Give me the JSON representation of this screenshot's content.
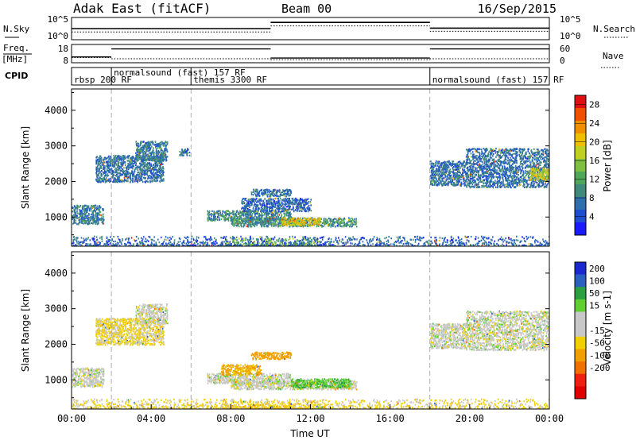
{
  "header": {
    "station": "Adak East (fitACF)",
    "beam": "Beam 00",
    "date": "16/Sep/2015"
  },
  "noise_panel": {
    "left_label": "N.Sky",
    "right_label": "N.Search",
    "y_ticks": [
      "10^5",
      "10^0"
    ],
    "sky_levels": [
      {
        "t0": 0.0,
        "t1": 10.0,
        "level": 0.5
      },
      {
        "t0": 10.0,
        "t1": 18.0,
        "level": 0.78
      },
      {
        "t0": 18.0,
        "t1": 24.0,
        "level": 0.52
      }
    ],
    "search_levels": [
      {
        "t0": 0.0,
        "t1": 10.0,
        "level": 0.35
      },
      {
        "t0": 10.0,
        "t1": 18.0,
        "level": 0.62
      },
      {
        "t0": 18.0,
        "t1": 24.0,
        "level": 0.38
      }
    ]
  },
  "freq_panel": {
    "left_label_1": "Freq.",
    "left_label_2": "[MHz]",
    "right_label": "Nave",
    "left_ticks": [
      "18",
      "8"
    ],
    "right_ticks": [
      "60",
      "0"
    ],
    "freq_mhz": [
      {
        "t0": 0.0,
        "t1": 2.0,
        "value": 11.2
      },
      {
        "t0": 2.0,
        "t1": 10.0,
        "value": 15.6
      },
      {
        "t0": 10.0,
        "t1": 18.0,
        "value": 10.6
      },
      {
        "t0": 18.0,
        "t1": 24.0,
        "value": 15.6
      }
    ],
    "nave": [
      {
        "t0": 0.0,
        "t1": 2.0,
        "value": 17
      },
      {
        "t0": 2.0,
        "t1": 10.0,
        "value": 13
      },
      {
        "t0": 10.0,
        "t1": 18.0,
        "value": 10
      },
      {
        "t0": 18.0,
        "t1": 24.0,
        "value": 13
      }
    ]
  },
  "cpid_panel": {
    "label": "CPID",
    "modes": [
      {
        "t": 0.0,
        "label": "rbsp 200 RF"
      },
      {
        "t": 2.0,
        "label": "normalsound (fast) 157 RF"
      },
      {
        "t": 6.0,
        "label": "themis 3300 RF"
      },
      {
        "t": 18.0,
        "label": "normalsound (fast) 157 RF"
      }
    ]
  },
  "chart_data": [
    {
      "type": "heatmap",
      "panel": "power",
      "ylabel": "Slant Range [km]",
      "ylim": [
        180,
        4600
      ],
      "y_ticks": [
        1000,
        2000,
        3000,
        4000
      ],
      "xlim": [
        0,
        24
      ],
      "mode_change_times": [
        2,
        6,
        18
      ],
      "colorbar": {
        "label": "Power [dB]",
        "range": [
          0,
          30
        ],
        "ticks": [
          4,
          8,
          12,
          16,
          20,
          24,
          28
        ],
        "colors": [
          "#1a1aff",
          "#1f4fd0",
          "#2e6fb0",
          "#3f8a7a",
          "#4fa85a",
          "#7fc040",
          "#c0d020",
          "#f0c000",
          "#f09000",
          "#f05000",
          "#e01010"
        ]
      },
      "echo_regions": [
        {
          "t0": 0.0,
          "t1": 1.6,
          "r0": 820,
          "r1": 1350,
          "value": 8
        },
        {
          "t0": 1.2,
          "t1": 4.6,
          "r0": 2000,
          "r1": 2750,
          "value": 7
        },
        {
          "t0": 3.2,
          "t1": 4.8,
          "r0": 2600,
          "r1": 3150,
          "value": 8
        },
        {
          "t0": 5.4,
          "t1": 5.9,
          "r0": 2750,
          "r1": 2950,
          "value": 7
        },
        {
          "t0": 6.8,
          "t1": 11.0,
          "r0": 920,
          "r1": 1200,
          "value": 9
        },
        {
          "t0": 8.0,
          "t1": 14.3,
          "r0": 750,
          "r1": 1000,
          "value": 10
        },
        {
          "t0": 10.5,
          "t1": 12.5,
          "r0": 780,
          "r1": 1000,
          "value": 19
        },
        {
          "t0": 8.5,
          "t1": 12.0,
          "r0": 1180,
          "r1": 1550,
          "value": 6
        },
        {
          "t0": 9.0,
          "t1": 11.0,
          "r0": 1600,
          "r1": 1800,
          "value": 7
        },
        {
          "t0": 18.0,
          "t1": 19.8,
          "r0": 1900,
          "r1": 2600,
          "value": 7
        },
        {
          "t0": 19.8,
          "t1": 24.0,
          "r0": 1850,
          "r1": 2950,
          "value": 7
        },
        {
          "t0": 23.0,
          "t1": 24.0,
          "r0": 2050,
          "r1": 2400,
          "value": 18
        },
        {
          "t0": 7.5,
          "t1": 12.5,
          "r0": 200,
          "r1": 420,
          "value": 15
        },
        {
          "t0": 0.0,
          "t1": 24.0,
          "r0": 180,
          "r1": 480,
          "value": 6
        }
      ]
    },
    {
      "type": "heatmap",
      "panel": "velocity",
      "ylabel": "Slant Range [km]",
      "xlabel": "Time UT",
      "ylim": [
        180,
        4600
      ],
      "y_ticks": [
        1000,
        2000,
        3000,
        4000
      ],
      "xlim": [
        0,
        24
      ],
      "x_ticks": [
        "00:00",
        "04:00",
        "08:00",
        "12:00",
        "16:00",
        "20:00",
        "00:00"
      ],
      "mode_change_times": [
        2,
        6,
        18
      ],
      "colorbar": {
        "label": "Velocity [m s-1]",
        "ticks": [
          200,
          100,
          50,
          15,
          -15,
          -50,
          -100,
          -200
        ],
        "colors": [
          "#1a2ad0",
          "#2a60c0",
          "#2aa040",
          "#60d030",
          "#c8c8c8",
          "#c8c8c8",
          "#f0d000",
          "#f0a000",
          "#f07000",
          "#f02010",
          "#e00000"
        ]
      },
      "echo_regions": [
        {
          "t0": 0.0,
          "t1": 1.6,
          "r0": 820,
          "r1": 1350,
          "value": 0
        },
        {
          "t0": 1.2,
          "t1": 4.6,
          "r0": 2000,
          "r1": 2750,
          "value": -20
        },
        {
          "t0": 3.2,
          "t1": 4.8,
          "r0": 2600,
          "r1": 3150,
          "value": 0
        },
        {
          "t0": 6.8,
          "t1": 11.0,
          "r0": 920,
          "r1": 1200,
          "value": 0
        },
        {
          "t0": 8.0,
          "t1": 14.3,
          "r0": 750,
          "r1": 1000,
          "value": 0
        },
        {
          "t0": 11.0,
          "t1": 14.0,
          "r0": 800,
          "r1": 1050,
          "value": 40
        },
        {
          "t0": 7.5,
          "t1": 9.5,
          "r0": 1150,
          "r1": 1450,
          "value": -60
        },
        {
          "t0": 9.0,
          "t1": 11.0,
          "r0": 1600,
          "r1": 1800,
          "value": -80
        },
        {
          "t0": 18.0,
          "t1": 19.8,
          "r0": 1900,
          "r1": 2600,
          "value": 0
        },
        {
          "t0": 19.8,
          "t1": 24.0,
          "r0": 1850,
          "r1": 2950,
          "value": 0
        },
        {
          "t0": 7.5,
          "t1": 12.5,
          "r0": 200,
          "r1": 420,
          "value": -40
        },
        {
          "t0": 0.0,
          "t1": 24.0,
          "r0": 180,
          "r1": 480,
          "value": -20
        }
      ]
    }
  ]
}
